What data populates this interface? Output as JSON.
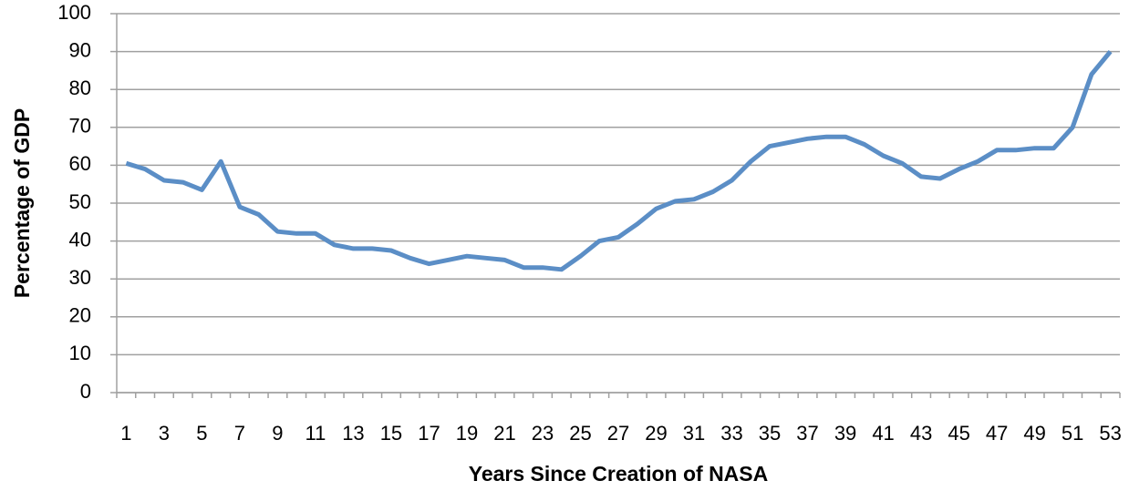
{
  "chart_data": {
    "type": "line",
    "xlabel": "Years Since Creation of NASA",
    "ylabel": "Percentage of GDP",
    "categories": [
      "1",
      null,
      "3",
      null,
      "5",
      null,
      "7",
      null,
      "9",
      null,
      "11",
      null,
      "13",
      null,
      "15",
      null,
      "17",
      null,
      "19",
      null,
      "21",
      null,
      "23",
      null,
      "25",
      null,
      "27",
      null,
      "29",
      null,
      "31",
      null,
      "33",
      null,
      "35",
      null,
      "37",
      null,
      "39",
      null,
      "41",
      null,
      "43",
      null,
      "45",
      null,
      "47",
      null,
      "49",
      null,
      "51",
      null,
      "53"
    ],
    "values": [
      60.5,
      59,
      56,
      55.5,
      53.5,
      61,
      49,
      47,
      42.5,
      42,
      42,
      39,
      38,
      38,
      37.5,
      35.5,
      34,
      35,
      36,
      35.5,
      35,
      33,
      33,
      32.5,
      36,
      40,
      41,
      44.5,
      48.5,
      50.5,
      51,
      53,
      56,
      61,
      65,
      66,
      67,
      67.5,
      67.5,
      65.5,
      62.5,
      60.5,
      57,
      56.5,
      59,
      61,
      64,
      64,
      64.5,
      64.5,
      70,
      84,
      90
    ],
    "color": "#5b8ec6",
    "ylim": [
      0,
      100
    ],
    "yticks": [
      0,
      10,
      20,
      30,
      40,
      50,
      60,
      70,
      80,
      90,
      100
    ],
    "grid": true
  }
}
